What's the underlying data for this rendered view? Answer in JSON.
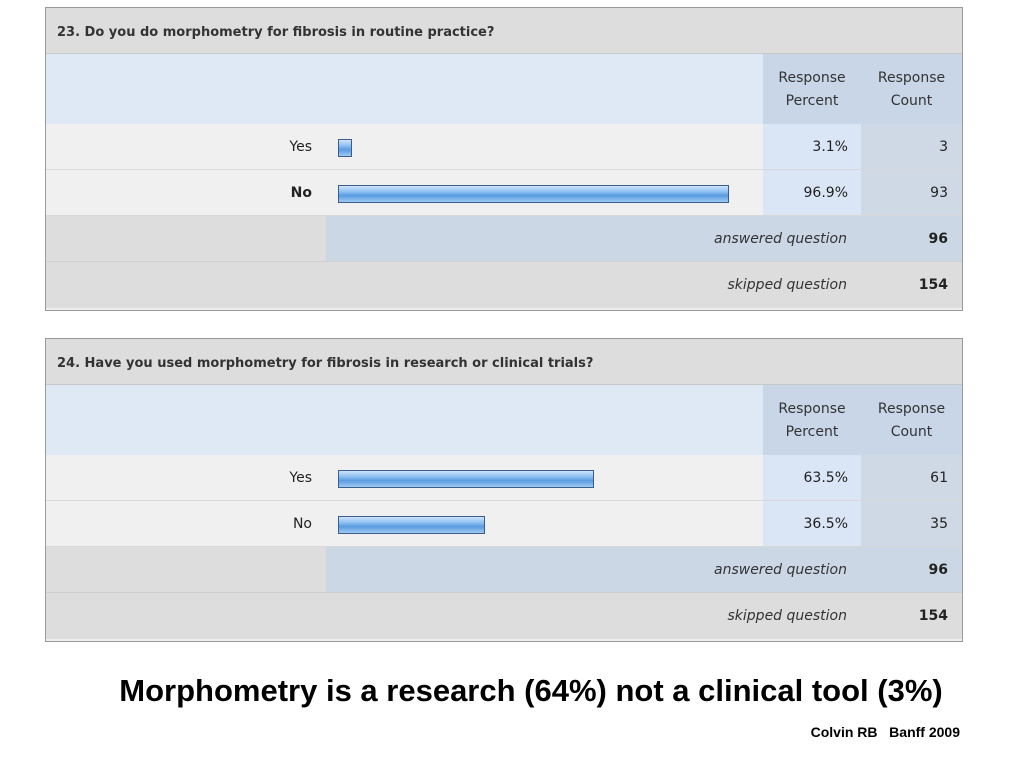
{
  "survey": {
    "q23": {
      "title": "23. Do you do morphometry for fibrosis in routine practice?",
      "header": {
        "percent_l1": "Response",
        "percent_l2": "Percent",
        "count_l1": "Response",
        "count_l2": "Count"
      },
      "options": [
        {
          "label": "Yes",
          "percent_text": "3.1%",
          "count": "3",
          "fraction": 0.031
        },
        {
          "label": "No",
          "percent_text": "96.9%",
          "count": "93",
          "fraction": 0.969
        }
      ],
      "answered_label": "answered question",
      "answered": "96",
      "skipped_label": "skipped question",
      "skipped": "154"
    },
    "q24": {
      "title": "24. Have you used morphometry for fibrosis in research or clinical trials?",
      "header": {
        "percent_l1": "Response",
        "percent_l2": "Percent",
        "count_l1": "Response",
        "count_l2": "Count"
      },
      "options": [
        {
          "label": "Yes",
          "percent_text": "63.5%",
          "count": "61",
          "fraction": 0.635
        },
        {
          "label": "No",
          "percent_text": "36.5%",
          "count": "35",
          "fraction": 0.365
        }
      ],
      "answered_label": "answered question",
      "answered": "96",
      "skipped_label": "skipped question",
      "skipped": "154"
    }
  },
  "headline": "Morphometry is a research (64%) not a clinical tool (3%)",
  "credit": "Colvin RB   Banff 2009",
  "colors": {
    "bar_fill": "#5a9be0",
    "bar_border": "#3a5d8c",
    "header_bg": "#dfe9f6"
  }
}
